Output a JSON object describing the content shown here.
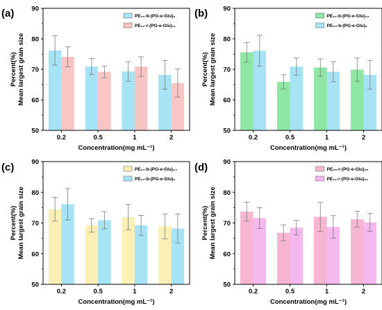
{
  "chart_data": [
    {
      "type": "bar",
      "panel_label": "(a)",
      "categories": [
        "0.2",
        "0.5",
        "1",
        "2"
      ],
      "series": [
        {
          "name": "PE₂₀-b-(PG-e-Glu)₉",
          "values": [
            76.2,
            70.9,
            69.3,
            68.2
          ],
          "errors": [
            4.8,
            2.6,
            3.2,
            4.7
          ],
          "color": "#a6e3f5"
        },
        {
          "name": "PE₂₁-r-(PG-e-Glu)₁₁",
          "values": [
            74.1,
            69.2,
            70.9,
            65.5
          ],
          "errors": [
            3.3,
            1.9,
            3.2,
            4.6
          ],
          "color": "#f9c4c4"
        }
      ],
      "xlabel": "Concentration(mg mL⁻¹)",
      "ylabel_lines": [
        "Percent(%)",
        "Mean largest grain size"
      ],
      "ylim": [
        50,
        90
      ],
      "yticks": [
        "50",
        "60",
        "70",
        "80",
        "90"
      ],
      "legend_position": "top-right"
    },
    {
      "type": "bar",
      "panel_label": "(b)",
      "categories": [
        "0.2",
        "0.5",
        "1",
        "2"
      ],
      "series": [
        {
          "name": "PE₂₁-b-(PG-e-Glu)₂₂",
          "values": [
            75.6,
            65.9,
            70.6,
            69.9
          ],
          "errors": [
            3.2,
            2.3,
            2.8,
            3.8
          ],
          "color": "#8ee8a4"
        },
        {
          "name": "PE₂₀-b-(PG-e-Glu)₉",
          "values": [
            76.1,
            70.9,
            69.2,
            68.2
          ],
          "errors": [
            5.1,
            2.8,
            3.3,
            4.7
          ],
          "color": "#a6e3f5"
        }
      ],
      "xlabel": "Concentration(mg mL⁻¹)",
      "ylabel_lines": [
        "Percent(%)",
        "Mean largest grain size"
      ],
      "ylim": [
        50,
        90
      ],
      "yticks": [
        "50",
        "60",
        "70",
        "80",
        "90"
      ],
      "legend_position": "top-right"
    },
    {
      "type": "bar",
      "panel_label": "(c)",
      "categories": [
        "0.2",
        "0.5",
        "1",
        "2"
      ],
      "series": [
        {
          "name": "PE₂₁-b-(PG-e-Glu)₂₄",
          "values": [
            74.5,
            69.2,
            71.9,
            68.9
          ],
          "errors": [
            3.9,
            2.2,
            4.1,
            4.1
          ],
          "color": "#faf0b5"
        },
        {
          "name": "PE₂₀-b-(PG-e-Glu)₉",
          "values": [
            76.1,
            70.9,
            69.2,
            68.2
          ],
          "errors": [
            5.1,
            2.8,
            3.3,
            4.7
          ],
          "color": "#a6e3f5"
        }
      ],
      "xlabel": "Concentration(mg mL⁻¹)",
      "ylabel_lines": [
        "Percent(%)",
        "Mean largest grain size"
      ],
      "ylim": [
        50,
        90
      ],
      "yticks": [
        "50",
        "60",
        "70",
        "80",
        "90"
      ],
      "legend_position": "top-right"
    },
    {
      "type": "bar",
      "panel_label": "(d)",
      "categories": [
        "0.2",
        "0.5",
        "1",
        "2"
      ],
      "series": [
        {
          "name": "PE₂₅-r-(PG-e-Glu)₂₅",
          "values": [
            73.7,
            66.8,
            72.0,
            71.2
          ],
          "errors": [
            3.1,
            2.6,
            4.7,
            2.6
          ],
          "color": "#f8b5d2"
        },
        {
          "name": "PE₅₁-r-(PG-e-Glu)₂₆",
          "values": [
            71.6,
            68.5,
            68.7,
            70.2
          ],
          "errors": [
            3.4,
            2.4,
            3.7,
            2.9
          ],
          "color": "#f4b8ef"
        }
      ],
      "xlabel": "Concentration(mg mL⁻¹)",
      "ylabel_lines": [
        "Percent(%)",
        "Mean largest grain size"
      ],
      "ylim": [
        50,
        90
      ],
      "yticks": [
        "50",
        "60",
        "70",
        "80",
        "90"
      ],
      "legend_position": "top-right"
    }
  ]
}
